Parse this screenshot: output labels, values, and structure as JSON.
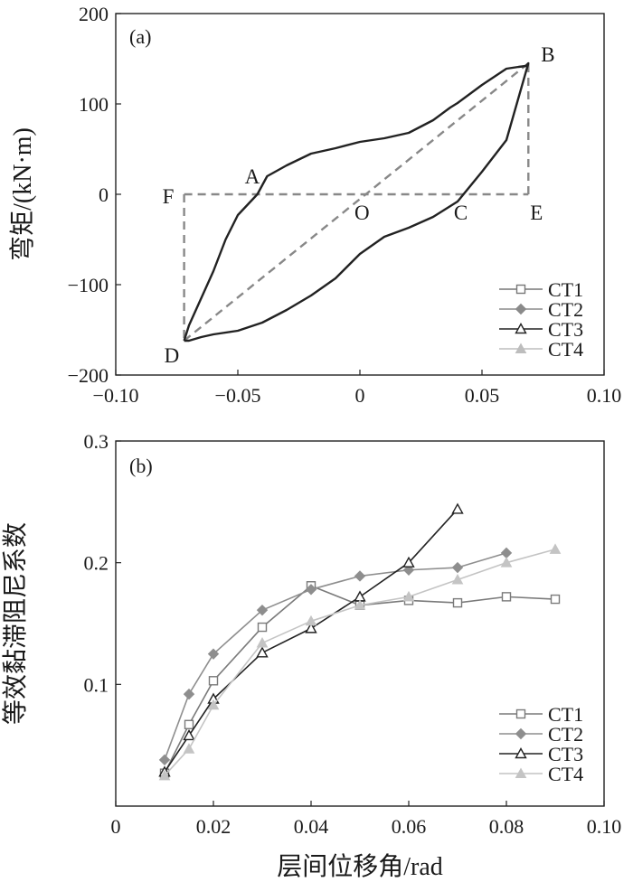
{
  "chart_data": [
    {
      "panel_label": "(a)",
      "type": "line",
      "ylabel": "弯矩/(kN·m)",
      "xlim": [
        -0.1,
        0.1
      ],
      "ylim": [
        -200,
        200
      ],
      "xticks": [
        -0.1,
        -0.05,
        0,
        0.05,
        0.1
      ],
      "xtick_labels": [
        "−0.10",
        "−0.05",
        "0",
        "0.05",
        "0.10"
      ],
      "yticks": [
        -200,
        -100,
        0,
        100,
        200
      ],
      "ytick_labels": [
        "−200",
        "−100",
        "0",
        "100",
        "200"
      ],
      "grid": false,
      "legend": "bottom-right",
      "series": [
        {
          "name": "CT1",
          "color": "#777777",
          "marker": "square-open",
          "line": "solid",
          "x": [],
          "y": []
        },
        {
          "name": "CT2",
          "color": "#8a8a8a",
          "marker": "diamond",
          "line": "solid",
          "x": [],
          "y": []
        },
        {
          "name": "CT3",
          "color": "#222222",
          "marker": "triangle-open",
          "line": "solid",
          "x": [
            -0.072,
            -0.07,
            -0.065,
            -0.06,
            -0.05,
            -0.04,
            -0.03,
            -0.02,
            -0.01,
            0.0,
            0.01,
            0.02,
            0.03,
            0.04,
            0.05,
            0.06,
            0.069,
            0.068,
            0.065,
            0.06,
            0.055,
            0.05,
            0.045,
            0.04,
            0.037,
            0.03,
            0.02,
            0.01,
            0.0,
            -0.01,
            -0.02,
            -0.03,
            -0.038,
            -0.042,
            -0.05,
            -0.055,
            -0.06,
            -0.065,
            -0.07,
            -0.072
          ],
          "y": [
            -162,
            -162,
            -158,
            -155,
            -151,
            -142,
            -128,
            -112,
            -93,
            -66,
            -47,
            -37,
            -25,
            -8,
            25,
            60,
            145,
            142,
            141,
            139,
            130,
            121,
            111,
            101,
            96,
            82,
            68,
            62,
            58,
            51,
            45,
            32,
            20,
            0,
            -23,
            -50,
            -85,
            -115,
            -145,
            -162
          ]
        },
        {
          "name": "CT4",
          "color": "#bdbdbd",
          "marker": "triangle-filled",
          "line": "solid",
          "x": [],
          "y": []
        }
      ],
      "reference_lines": [
        {
          "style": "dashed",
          "color": "#888888",
          "x": [
            -0.072,
            0.069
          ],
          "y": [
            -162,
            145
          ]
        },
        {
          "style": "dashed",
          "color": "#888888",
          "x": [
            -0.072,
            0.069
          ],
          "y": [
            0,
            0
          ]
        },
        {
          "style": "dashed",
          "color": "#888888",
          "x": [
            -0.072,
            -0.072
          ],
          "y": [
            0,
            -162
          ]
        },
        {
          "style": "dashed",
          "color": "#888888",
          "x": [
            0.069,
            0.069
          ],
          "y": [
            0,
            145
          ]
        }
      ],
      "annotations": [
        {
          "text": "A",
          "x": -0.042,
          "y": 0
        },
        {
          "text": "B",
          "x": 0.069,
          "y": 145
        },
        {
          "text": "C",
          "x": 0.037,
          "y": 0
        },
        {
          "text": "D",
          "x": -0.072,
          "y": -162
        },
        {
          "text": "E",
          "x": 0.069,
          "y": 0
        },
        {
          "text": "F",
          "x": -0.072,
          "y": 0
        },
        {
          "text": "O",
          "x": 0.0,
          "y": 0
        }
      ]
    },
    {
      "panel_label": "(b)",
      "type": "line",
      "xlabel": "层间位移角/rad",
      "ylabel": "等效黏滞阻尼系数",
      "xlim": [
        0,
        0.1
      ],
      "ylim": [
        0,
        0.3
      ],
      "xticks": [
        0,
        0.02,
        0.04,
        0.06,
        0.08,
        0.1
      ],
      "xtick_labels": [
        "0",
        "0.02",
        "0.04",
        "0.06",
        "0.08",
        "0.10"
      ],
      "yticks": [
        0.1,
        0.2,
        0.3
      ],
      "ytick_labels": [
        "0.1",
        "0.2",
        "0.3"
      ],
      "grid": false,
      "legend": "bottom-right",
      "series": [
        {
          "name": "CT1",
          "color": "#7a7a7a",
          "marker": "square-open",
          "x": [
            0.01,
            0.015,
            0.02,
            0.03,
            0.04,
            0.05,
            0.06,
            0.07,
            0.08,
            0.09
          ],
          "y": [
            0.027,
            0.067,
            0.103,
            0.147,
            0.181,
            0.165,
            0.169,
            0.167,
            0.172,
            0.17
          ]
        },
        {
          "name": "CT2",
          "color": "#8e8e8e",
          "marker": "diamond",
          "x": [
            0.01,
            0.015,
            0.02,
            0.03,
            0.04,
            0.05,
            0.06,
            0.07,
            0.08
          ],
          "y": [
            0.038,
            0.092,
            0.125,
            0.161,
            0.178,
            0.189,
            0.194,
            0.196,
            0.208
          ]
        },
        {
          "name": "CT3",
          "color": "#222222",
          "marker": "triangle-open",
          "x": [
            0.01,
            0.015,
            0.02,
            0.03,
            0.04,
            0.05,
            0.06,
            0.07
          ],
          "y": [
            0.028,
            0.058,
            0.088,
            0.126,
            0.146,
            0.172,
            0.2,
            0.244
          ]
        },
        {
          "name": "CT4",
          "color": "#c4c4c4",
          "marker": "triangle-filled",
          "x": [
            0.01,
            0.015,
            0.02,
            0.03,
            0.04,
            0.05,
            0.06,
            0.07,
            0.08,
            0.09
          ],
          "y": [
            0.025,
            0.047,
            0.083,
            0.134,
            0.152,
            0.165,
            0.172,
            0.186,
            0.2,
            0.211
          ]
        }
      ]
    }
  ]
}
